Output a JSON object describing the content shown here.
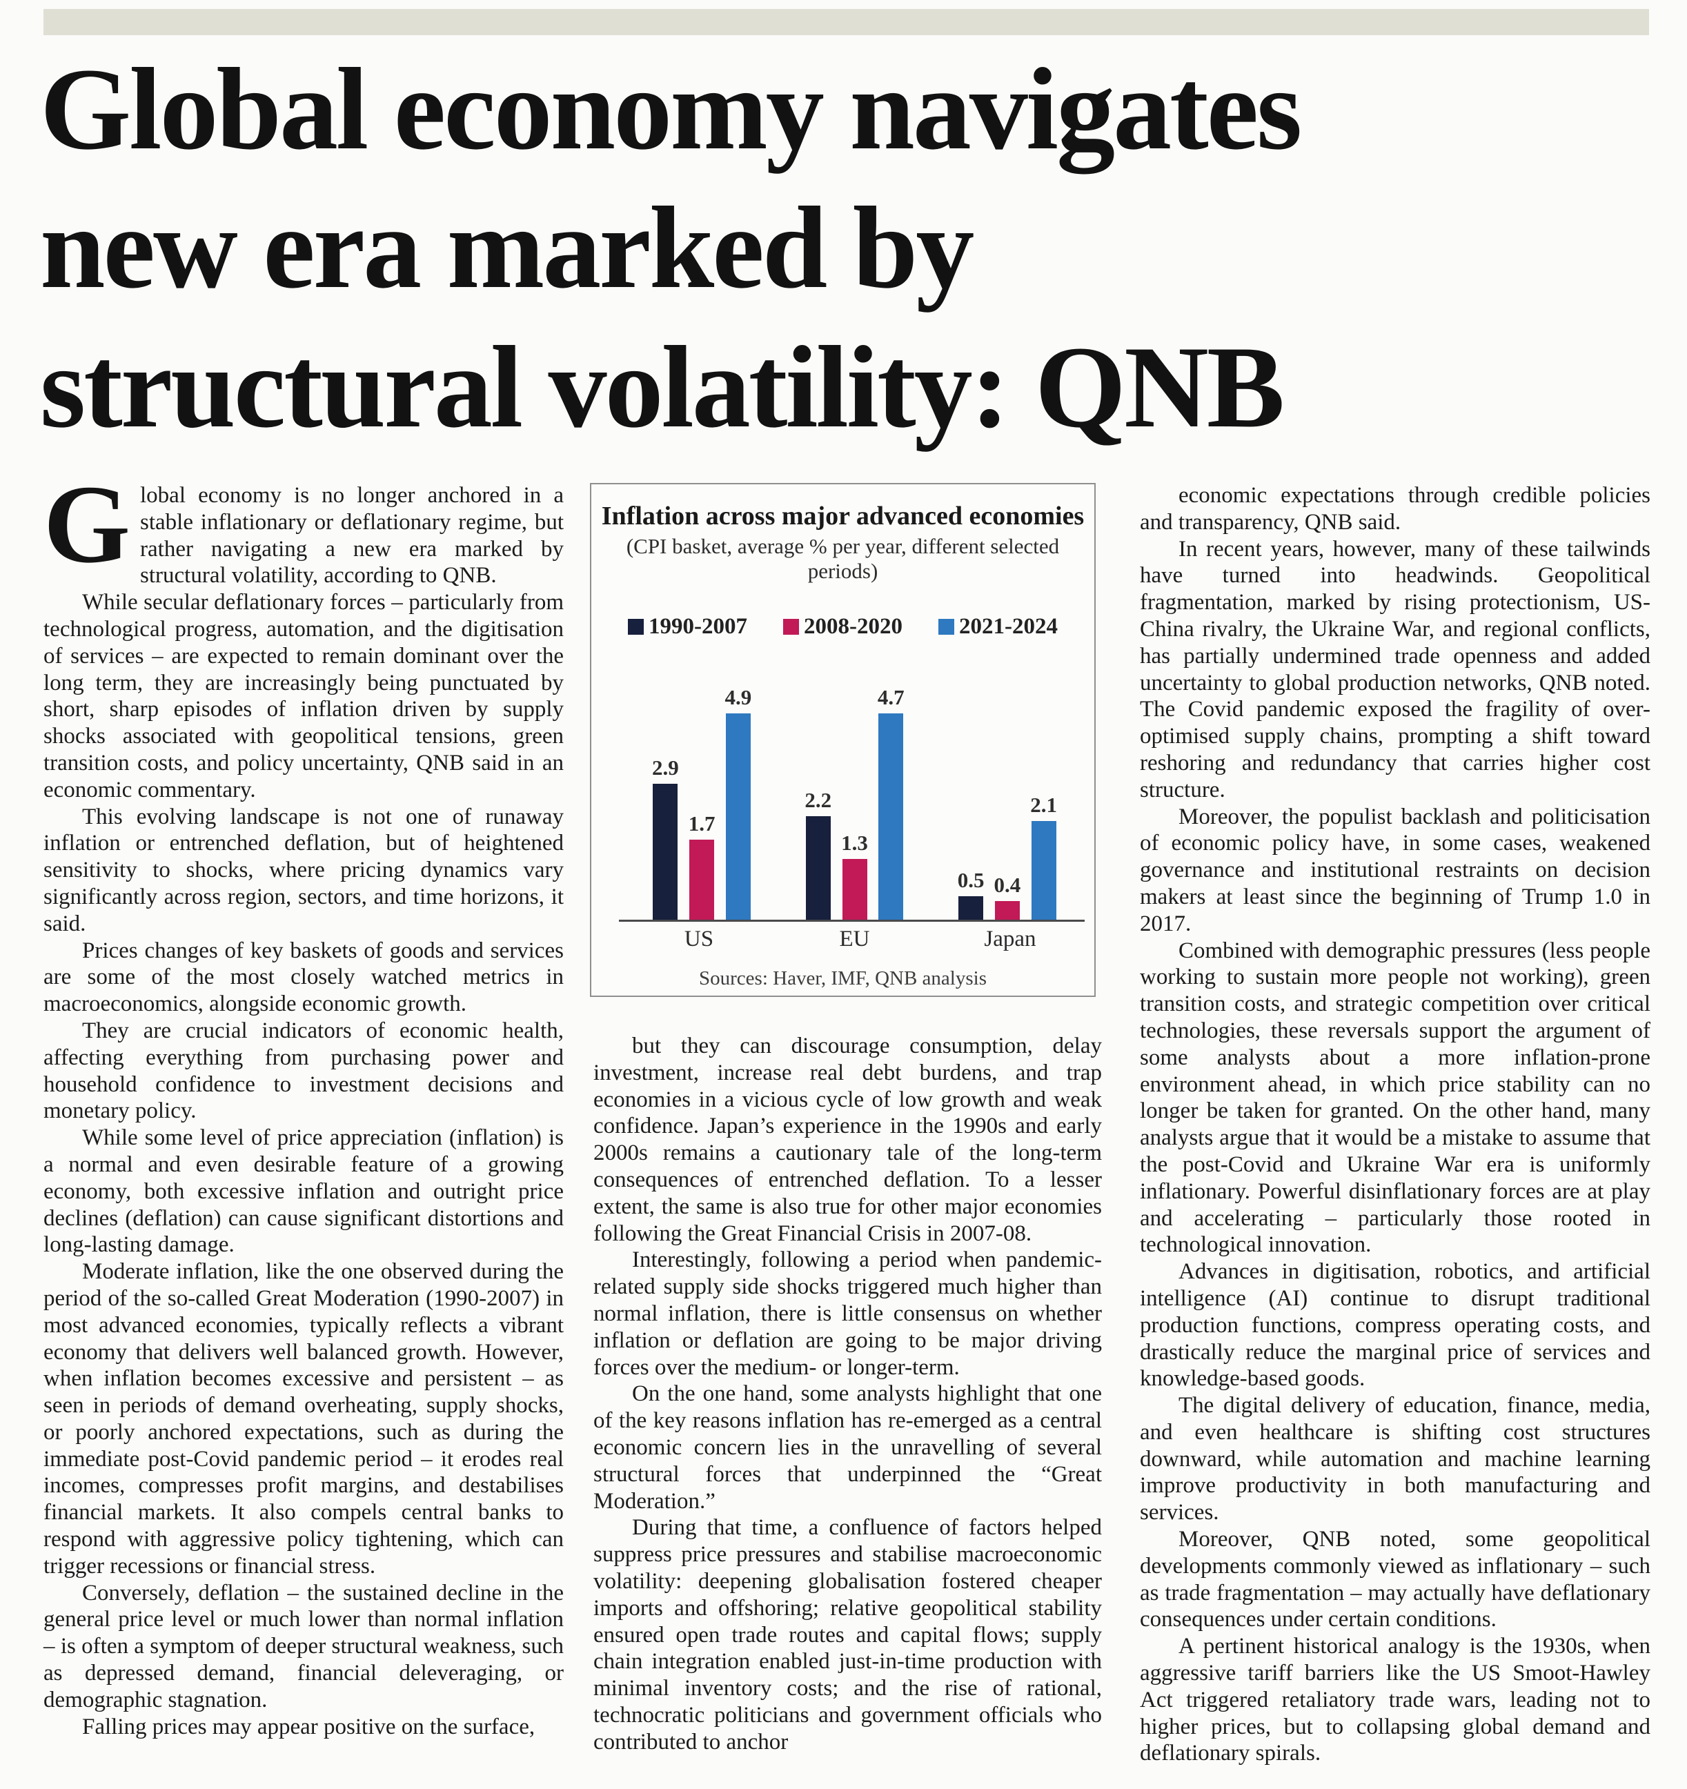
{
  "page": {
    "background": "#fbfbf9",
    "topbar_color": "#dfdfd3"
  },
  "headline": {
    "lines": [
      "Global economy navigates",
      "new era marked by",
      "structural volatility: QNB"
    ]
  },
  "article": {
    "dropcap": "G",
    "col1_first": "lobal economy is no longer anchored in a stable inflationary or deflationary regime, but rather navigating a new era marked by structural volatility, according to QNB.",
    "col1_rest": [
      "While secular deflationary forces – particularly from technological progress, automation, and the digitisation of services – are expected to remain dominant over the long term, they are increasingly being punctuated by short, sharp episodes of inflation driven by supply shocks associated with geopolitical tensions, green transition costs, and policy uncertainty, QNB said in an economic commentary.",
      "This evolving landscape is not one of runaway inflation or entrenched deflation, but of heightened sensitivity to shocks, where pricing dynamics vary significantly across region, sectors, and time horizons, it said.",
      "Prices changes of key baskets of goods and services are some of the most closely watched metrics in macroeconomics, alongside economic growth.",
      "They are crucial indicators of economic health, affecting everything from purchasing power and household confidence to investment decisions and monetary policy.",
      "While some level of price appreciation (inflation) is a normal and even desirable feature of a growing economy, both excessive inflation and outright price declines (deflation) can cause significant distortions and long-lasting damage.",
      "Moderate inflation, like the one observed during the period of the so-called Great Moderation (1990-2007) in most advanced economies, typically reflects a vibrant economy that delivers well balanced growth. However, when inflation becomes excessive and persistent – as seen in periods of demand overheating, supply shocks, or poorly anchored expectations, such as during the immediate post-Covid pandemic period – it erodes real incomes, compresses profit margins, and destabilises financial markets. It also compels central banks to respond with aggressive policy tightening, which can trigger recessions or financial stress.",
      "Conversely, deflation – the sustained decline in the general price level or much lower than normal inflation – is often a symptom of deeper structural weakness, such as depressed demand, financial deleveraging, or demographic stagnation.",
      "Falling prices may appear positive on the surface,"
    ],
    "col2": [
      "but they can discourage consumption, delay investment, increase real debt burdens, and trap economies in a vicious cycle of low growth and weak confidence. Japan’s experience in the 1990s and early 2000s remains a cautionary tale of the long-term consequences of entrenched deflation. To a lesser extent, the same is also true for other major economies following the Great Financial Crisis in 2007-08.",
      "Interestingly, following a period when pandemic-related supply side shocks triggered much higher than normal inflation, there is little consensus on whether inflation or deflation are going to be major driving forces over the medium- or longer-term.",
      "On the one hand, some analysts highlight that one of the key reasons inflation has re-emerged as a central economic concern lies in the unravelling of several structural forces that underpinned the “Great Moderation.”",
      "During that time, a confluence of factors helped suppress price pressures and stabilise macroeconomic volatility: deepening globalisation fostered cheaper imports and offshoring; relative geopolitical stability ensured open trade routes and capital flows; supply chain integration enabled just-in-time production with minimal inventory costs; and the rise of rational, technocratic politicians and government officials who contributed to anchor"
    ],
    "col3": [
      "economic expectations through credible policies and transparency, QNB said.",
      "In recent years, however, many of these tailwinds have turned into headwinds. Geopolitical fragmentation, marked by rising protectionism, US-China rivalry, the Ukraine War, and regional conflicts, has partially undermined trade openness and added uncertainty to global production networks, QNB noted. The Covid pandemic exposed the fragility of over-optimised supply chains, prompting a shift toward reshoring and redundancy that carries higher cost structure.",
      "Moreover, the populist backlash and politicisation of economic policy have, in some cases, weakened governance and institutional restraints on decision makers at least since the beginning of Trump 1.0 in 2017.",
      "Combined with demographic pressures (less people working to sustain more people not working), green transition costs, and strategic competition over critical technologies, these reversals support the argument of some analysts about a more inflation-prone environment ahead, in which price stability can no longer be taken for granted. On the other hand, many analysts argue that it would be a mistake to assume that the post-Covid and Ukraine War era is uniformly inflationary. Powerful disinflationary forces are at play and accelerating – particularly those rooted in technological innovation.",
      "Advances in digitisation, robotics, and artificial intelligence (AI) continue to disrupt traditional production functions, compress operating costs, and drastically reduce the marginal price of services and knowledge-based goods.",
      "The digital delivery of education, finance, media, and even healthcare is shifting cost structures downward, while automation and machine learning improve productivity in both manufacturing and services.",
      "Moreover, QNB noted, some geopolitical developments commonly viewed as inflationary – such as trade fragmentation – may actually have deflationary consequences under certain conditions.",
      "A pertinent historical analogy is the 1930s, when aggressive tariff barriers like the US Smoot-Hawley Act triggered retaliatory trade wars, leading not to higher prices, but to collapsing global demand and deflationary spirals."
    ]
  },
  "chart_data": {
    "type": "bar",
    "title": "Inflation across major advanced economies",
    "subtitle": "(CPI basket, average % per year, different selected periods)",
    "source_note": "Sources: Haver, IMF, QNB analysis",
    "categories": [
      "US",
      "EU",
      "Japan"
    ],
    "series": [
      {
        "name": "1990-2007",
        "color": "#17203c",
        "values": [
          2.9,
          2.2,
          0.5
        ]
      },
      {
        "name": "2008-2020",
        "color": "#c11a56",
        "values": [
          1.7,
          1.3,
          0.4
        ]
      },
      {
        "name": "2021-2024",
        "color": "#2e79c0",
        "values": [
          4.9,
          4.7,
          2.1
        ]
      }
    ],
    "ylim": [
      0,
      5
    ],
    "ylabel": "",
    "xlabel": "",
    "grid": false,
    "legend_position": "top",
    "axis_color": "#4a4a4a"
  }
}
